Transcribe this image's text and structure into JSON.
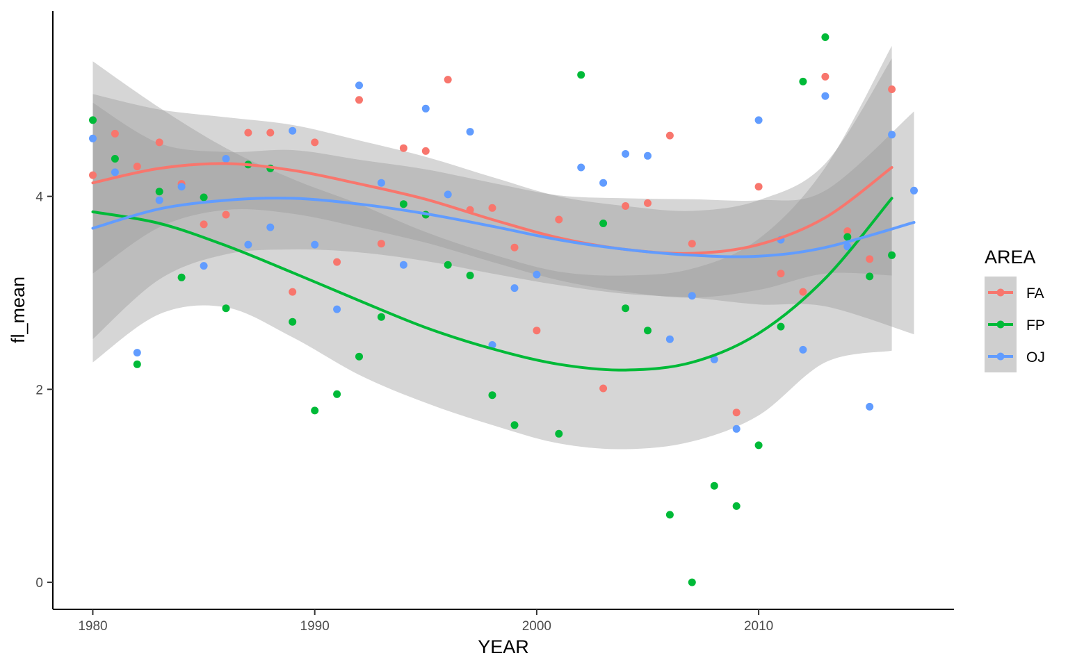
{
  "chart_data": {
    "type": "scatter",
    "title": "",
    "xlabel": "YEAR",
    "ylabel": "fl_mean",
    "xlim": [
      1978.2,
      2018.8
    ],
    "ylim": [
      -0.28,
      5.92
    ],
    "x_ticks": [
      1980,
      1990,
      2000,
      2010
    ],
    "x_tick_labels": [
      "1980",
      "1990",
      "2000",
      "2010"
    ],
    "y_ticks": [
      0,
      2,
      4
    ],
    "y_tick_labels": [
      "0",
      "2",
      "4"
    ],
    "grid": false,
    "legend": {
      "title": "AREA",
      "position": "right"
    },
    "smoother": "loess with confidence band",
    "series": [
      {
        "name": "FA",
        "color": "#F8766D",
        "points": [
          [
            1980,
            4.22
          ],
          [
            1981,
            4.65
          ],
          [
            1982,
            4.31
          ],
          [
            1983,
            4.56
          ],
          [
            1984,
            4.13
          ],
          [
            1985,
            3.71
          ],
          [
            1986,
            3.81
          ],
          [
            1987,
            4.66
          ],
          [
            1988,
            4.66
          ],
          [
            1989,
            3.01
          ],
          [
            1990,
            4.56
          ],
          [
            1991,
            3.32
          ],
          [
            1992,
            5.0
          ],
          [
            1993,
            3.51
          ],
          [
            1994,
            4.5
          ],
          [
            1995,
            4.47
          ],
          [
            1996,
            5.21
          ],
          [
            1997,
            3.86
          ],
          [
            1998,
            3.88
          ],
          [
            1999,
            3.47
          ],
          [
            2000,
            2.61
          ],
          [
            2001,
            3.76
          ],
          [
            2003,
            2.01
          ],
          [
            2004,
            3.9
          ],
          [
            2005,
            3.93
          ],
          [
            2006,
            4.63
          ],
          [
            2007,
            3.51
          ],
          [
            2009,
            1.76
          ],
          [
            2010,
            4.1
          ],
          [
            2011,
            3.2
          ],
          [
            2012,
            3.01
          ],
          [
            2013,
            5.24
          ],
          [
            2014,
            3.64
          ],
          [
            2015,
            3.35
          ],
          [
            2016,
            5.11
          ]
        ],
        "smooth": [
          [
            1980,
            4.14
          ],
          [
            1983,
            4.29
          ],
          [
            1986,
            4.34
          ],
          [
            1989,
            4.27
          ],
          [
            1992,
            4.13
          ],
          [
            1995,
            3.97
          ],
          [
            1998,
            3.76
          ],
          [
            2001,
            3.57
          ],
          [
            2004,
            3.45
          ],
          [
            2007,
            3.41
          ],
          [
            2010,
            3.5
          ],
          [
            2013,
            3.78
          ],
          [
            2016,
            4.3
          ]
        ],
        "band": [
          [
            1980,
            5.06,
            3.2
          ],
          [
            1983,
            4.9,
            3.68
          ],
          [
            1986,
            4.82,
            3.86
          ],
          [
            1989,
            4.74,
            3.82
          ],
          [
            1992,
            4.58,
            3.68
          ],
          [
            1995,
            4.41,
            3.52
          ],
          [
            1998,
            4.2,
            3.32
          ],
          [
            2001,
            4.0,
            3.13
          ],
          [
            2004,
            3.9,
            3.01
          ],
          [
            2007,
            3.85,
            2.95
          ],
          [
            2010,
            3.96,
            3.03
          ],
          [
            2013,
            4.34,
            3.2
          ],
          [
            2016,
            5.43,
            3.18
          ]
        ]
      },
      {
        "name": "FP",
        "color": "#00BA38",
        "points": [
          [
            1980,
            4.79
          ],
          [
            1981,
            4.39
          ],
          [
            1982,
            2.26
          ],
          [
            1983,
            4.05
          ],
          [
            1984,
            3.16
          ],
          [
            1985,
            3.99
          ],
          [
            1986,
            2.84
          ],
          [
            1987,
            4.33
          ],
          [
            1988,
            4.29
          ],
          [
            1989,
            2.7
          ],
          [
            1990,
            1.78
          ],
          [
            1991,
            1.95
          ],
          [
            1992,
            2.34
          ],
          [
            1993,
            2.75
          ],
          [
            1994,
            3.92
          ],
          [
            1995,
            3.81
          ],
          [
            1996,
            3.29
          ],
          [
            1997,
            3.18
          ],
          [
            1998,
            1.94
          ],
          [
            1999,
            1.63
          ],
          [
            2001,
            1.54
          ],
          [
            2002,
            5.26
          ],
          [
            2003,
            3.72
          ],
          [
            2004,
            2.84
          ],
          [
            2005,
            2.61
          ],
          [
            2006,
            0.7
          ],
          [
            2007,
            0.0
          ],
          [
            2008,
            1.0
          ],
          [
            2009,
            0.79
          ],
          [
            2010,
            1.42
          ],
          [
            2011,
            2.65
          ],
          [
            2012,
            5.19
          ],
          [
            2013,
            5.65
          ],
          [
            2014,
            3.58
          ],
          [
            2015,
            3.17
          ],
          [
            2016,
            3.39
          ]
        ],
        "smooth": [
          [
            1980,
            3.84
          ],
          [
            1983,
            3.72
          ],
          [
            1986,
            3.49
          ],
          [
            1989,
            3.21
          ],
          [
            1992,
            2.92
          ],
          [
            1995,
            2.64
          ],
          [
            1998,
            2.42
          ],
          [
            2001,
            2.26
          ],
          [
            2004,
            2.2
          ],
          [
            2007,
            2.28
          ],
          [
            2010,
            2.58
          ],
          [
            2013,
            3.15
          ],
          [
            2016,
            3.98
          ]
        ],
        "band": [
          [
            1980,
            5.4,
            2.28
          ],
          [
            1983,
            4.92,
            2.78
          ],
          [
            1986,
            4.5,
            2.85
          ],
          [
            1989,
            4.18,
            2.54
          ],
          [
            1992,
            3.92,
            2.15
          ],
          [
            1995,
            3.63,
            1.86
          ],
          [
            1998,
            3.4,
            1.63
          ],
          [
            2001,
            3.22,
            1.44
          ],
          [
            2004,
            3.18,
            1.38
          ],
          [
            2007,
            3.25,
            1.46
          ],
          [
            2010,
            3.56,
            1.73
          ],
          [
            2013,
            4.3,
            2.28
          ],
          [
            2016,
            5.56,
            2.4
          ]
        ]
      },
      {
        "name": "OJ",
        "color": "#619CFF",
        "points": [
          [
            1980,
            4.6
          ],
          [
            1981,
            4.25
          ],
          [
            1982,
            2.38
          ],
          [
            1983,
            3.96
          ],
          [
            1984,
            4.1
          ],
          [
            1985,
            3.28
          ],
          [
            1986,
            4.39
          ],
          [
            1987,
            3.5
          ],
          [
            1988,
            3.68
          ],
          [
            1989,
            4.68
          ],
          [
            1990,
            3.5
          ],
          [
            1991,
            2.83
          ],
          [
            1992,
            5.15
          ],
          [
            1993,
            4.14
          ],
          [
            1994,
            3.29
          ],
          [
            1995,
            4.91
          ],
          [
            1996,
            4.02
          ],
          [
            1997,
            4.67
          ],
          [
            1998,
            2.46
          ],
          [
            1999,
            3.05
          ],
          [
            2000,
            3.19
          ],
          [
            2002,
            4.3
          ],
          [
            2003,
            4.14
          ],
          [
            2004,
            4.44
          ],
          [
            2005,
            4.42
          ],
          [
            2006,
            2.52
          ],
          [
            2007,
            2.97
          ],
          [
            2008,
            2.31
          ],
          [
            2009,
            1.59
          ],
          [
            2010,
            4.79
          ],
          [
            2011,
            3.55
          ],
          [
            2012,
            2.41
          ],
          [
            2013,
            5.04
          ],
          [
            2014,
            3.48
          ],
          [
            2015,
            1.82
          ],
          [
            2016,
            4.64
          ],
          [
            2017,
            4.06
          ]
        ],
        "smooth": [
          [
            1980,
            3.67
          ],
          [
            1983,
            3.87
          ],
          [
            1986,
            3.96
          ],
          [
            1989,
            3.98
          ],
          [
            1992,
            3.92
          ],
          [
            1995,
            3.82
          ],
          [
            1998,
            3.69
          ],
          [
            2001,
            3.55
          ],
          [
            2004,
            3.45
          ],
          [
            2007,
            3.39
          ],
          [
            2010,
            3.38
          ],
          [
            2013,
            3.47
          ],
          [
            2017,
            3.73
          ]
        ],
        "band": [
          [
            1980,
            4.97,
            2.52
          ],
          [
            1983,
            4.55,
            3.14
          ],
          [
            1986,
            4.46,
            3.4
          ],
          [
            1989,
            4.48,
            3.45
          ],
          [
            1992,
            4.38,
            3.42
          ],
          [
            1995,
            4.28,
            3.33
          ],
          [
            1998,
            4.14,
            3.2
          ],
          [
            2001,
            4.01,
            3.08
          ],
          [
            2004,
            3.98,
            2.99
          ],
          [
            2007,
            3.97,
            2.95
          ],
          [
            2010,
            3.96,
            2.88
          ],
          [
            2013,
            4.06,
            2.86
          ],
          [
            2017,
            4.88,
            2.57
          ]
        ]
      }
    ]
  }
}
